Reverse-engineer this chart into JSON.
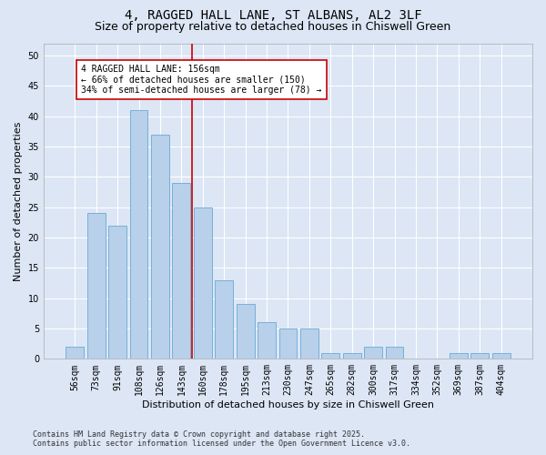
{
  "title1": "4, RAGGED HALL LANE, ST ALBANS, AL2 3LF",
  "title2": "Size of property relative to detached houses in Chiswell Green",
  "xlabel": "Distribution of detached houses by size in Chiswell Green",
  "ylabel": "Number of detached properties",
  "categories": [
    "56sqm",
    "73sqm",
    "91sqm",
    "108sqm",
    "126sqm",
    "143sqm",
    "160sqm",
    "178sqm",
    "195sqm",
    "213sqm",
    "230sqm",
    "247sqm",
    "265sqm",
    "282sqm",
    "300sqm",
    "317sqm",
    "334sqm",
    "352sqm",
    "369sqm",
    "387sqm",
    "404sqm"
  ],
  "values": [
    2,
    24,
    22,
    41,
    37,
    29,
    25,
    13,
    9,
    6,
    5,
    5,
    1,
    1,
    2,
    2,
    0,
    0,
    1,
    1,
    1
  ],
  "bar_color": "#b8d0ea",
  "bar_edge_color": "#6aaad4",
  "bg_color": "#dce6f5",
  "grid_color": "#ffffff",
  "vline_x_idx": 6,
  "vline_color": "#cc0000",
  "annotation_text": "4 RAGGED HALL LANE: 156sqm\n← 66% of detached houses are smaller (150)\n34% of semi-detached houses are larger (78) →",
  "annotation_box_facecolor": "#ffffff",
  "annotation_box_edgecolor": "#cc0000",
  "footer1": "Contains HM Land Registry data © Crown copyright and database right 2025.",
  "footer2": "Contains public sector information licensed under the Open Government Licence v3.0.",
  "ylim": [
    0,
    52
  ],
  "yticks": [
    0,
    5,
    10,
    15,
    20,
    25,
    30,
    35,
    40,
    45,
    50
  ],
  "title1_fontsize": 10,
  "title2_fontsize": 9,
  "xlabel_fontsize": 8,
  "ylabel_fontsize": 8,
  "tick_fontsize": 7,
  "ann_fontsize": 7,
  "footer_fontsize": 6
}
